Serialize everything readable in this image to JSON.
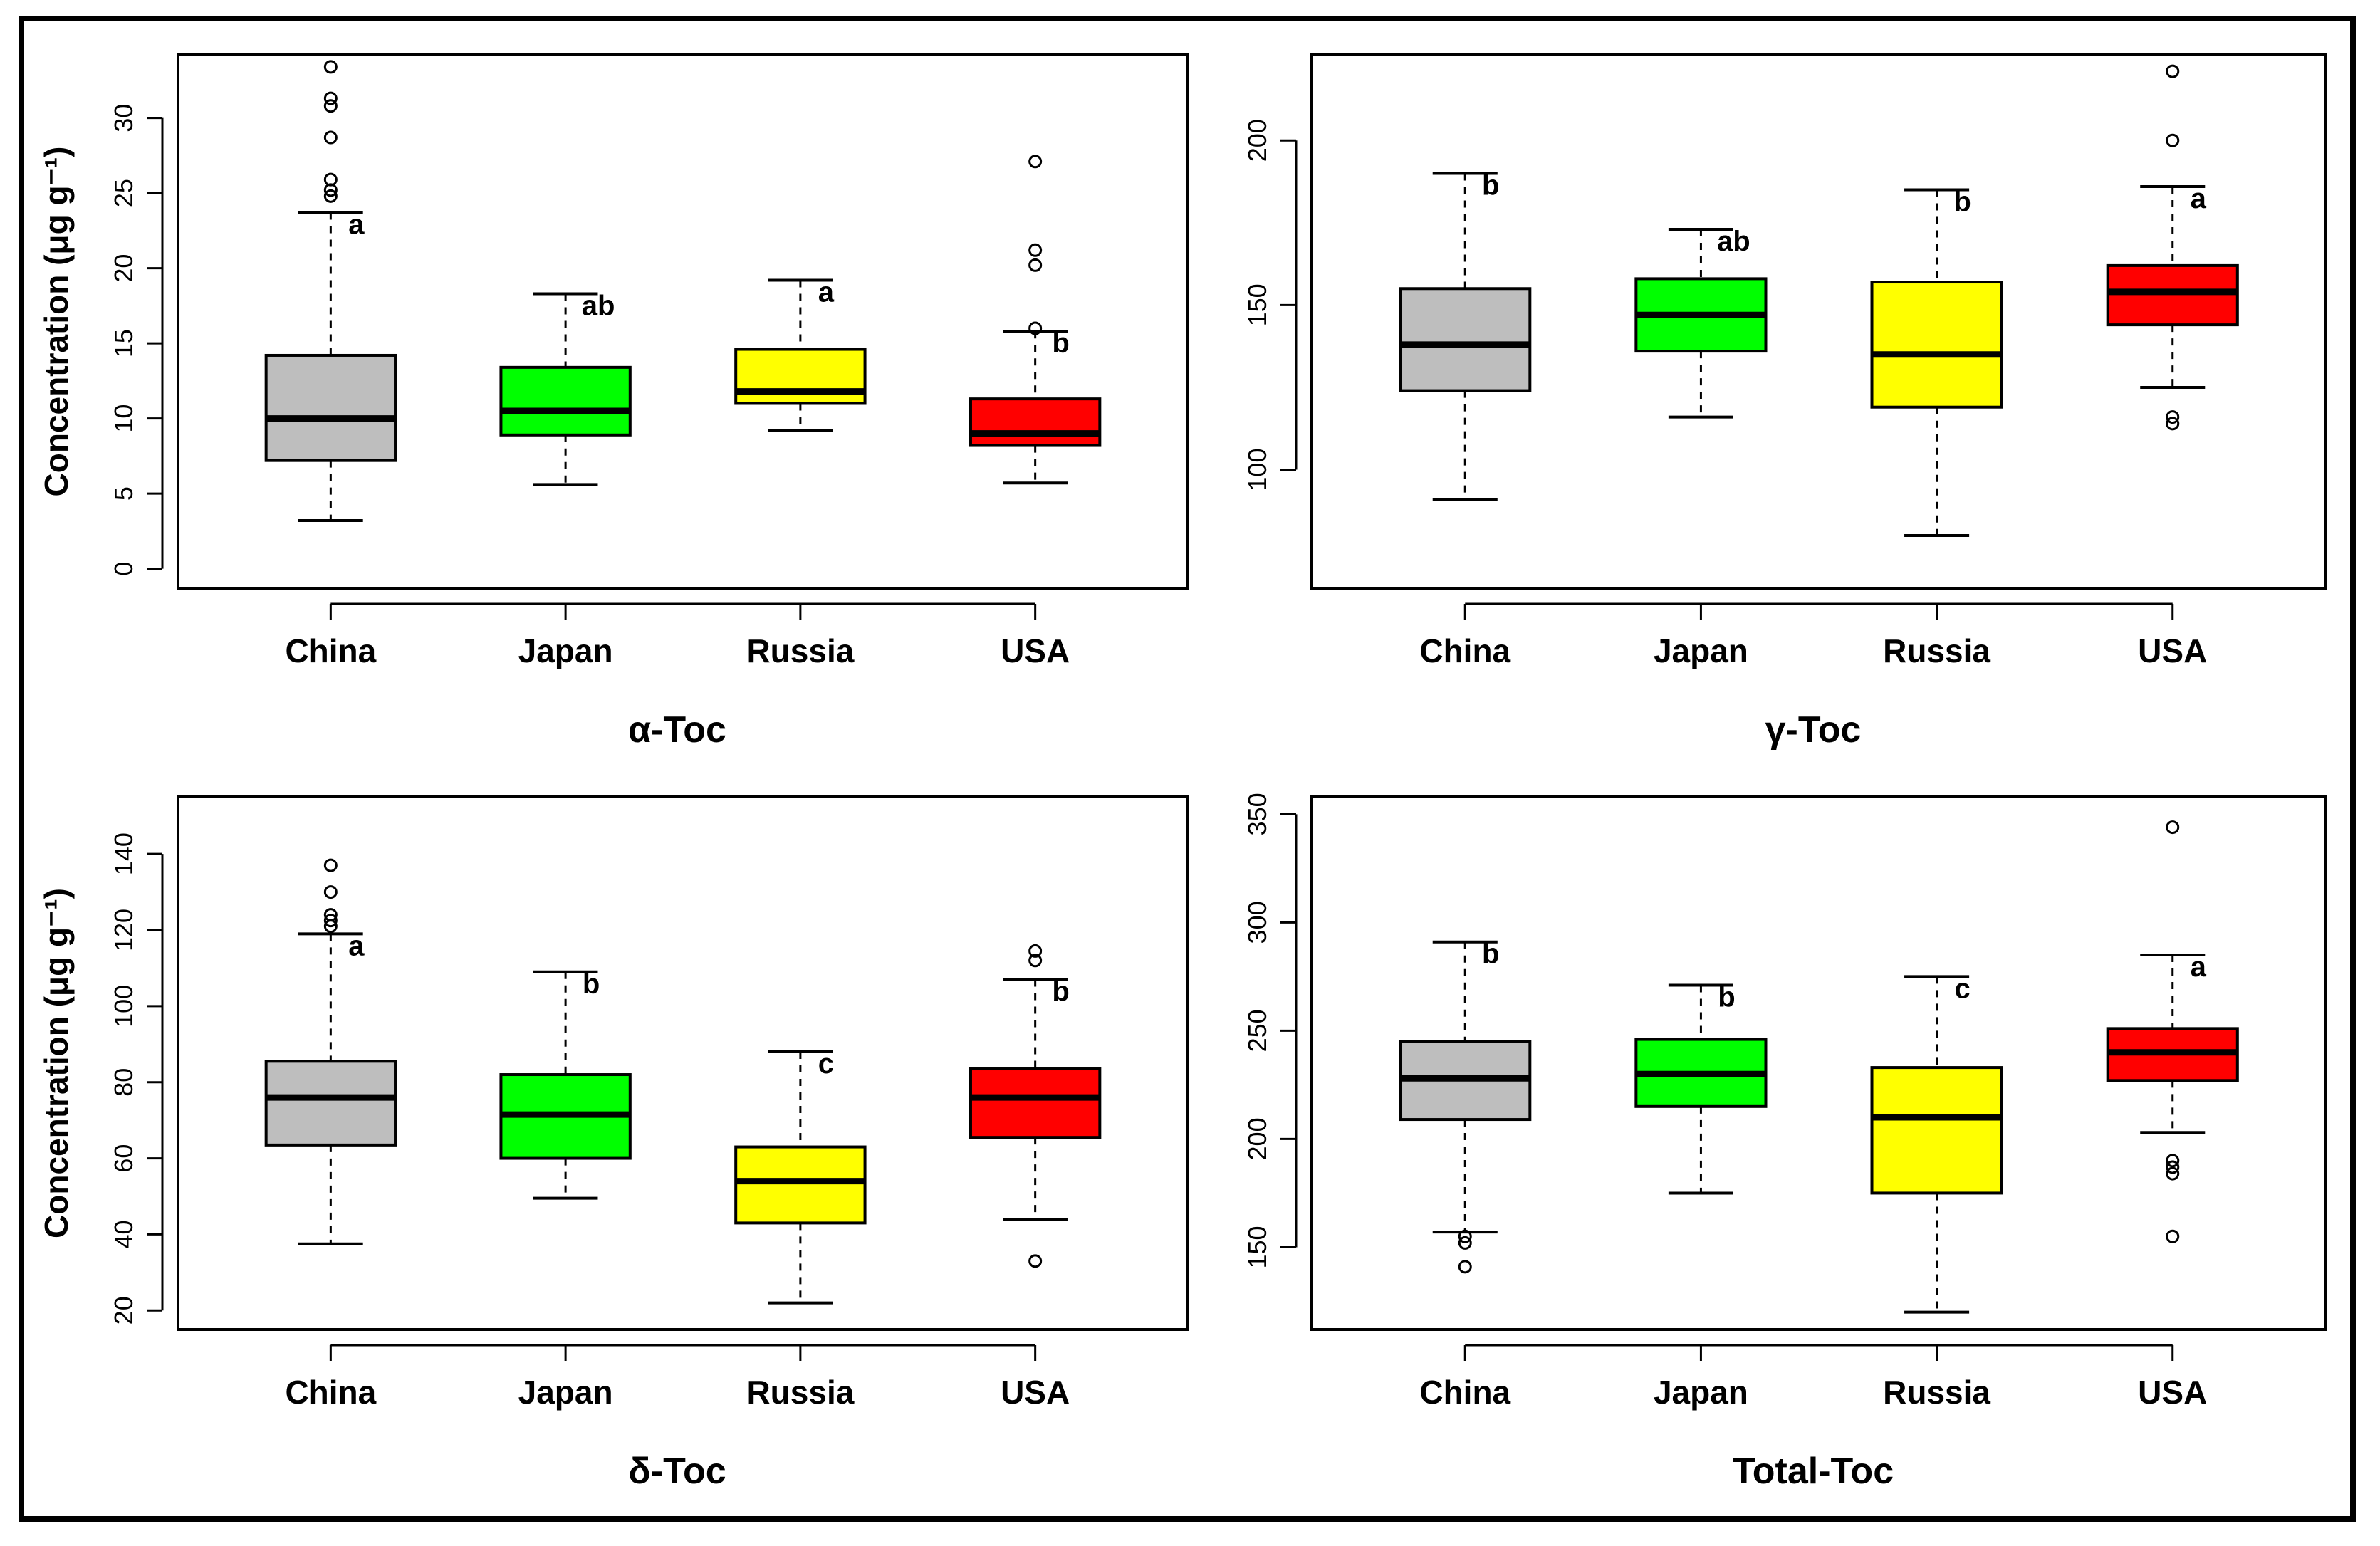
{
  "figure": {
    "y_axis_label": "Concentration (μg g⁻¹)",
    "colors": {
      "China": "#bebebe",
      "Japan": "#00ff00",
      "Russia": "#ffff00",
      "USA": "#ff0000"
    }
  },
  "chart_data": [
    {
      "type": "boxplot",
      "title": "α-Toc",
      "ylabel": "Concentration (μg g⁻¹)",
      "categories": [
        "China",
        "Japan",
        "Russia",
        "USA"
      ],
      "ylim": [
        -1.3,
        34.2
      ],
      "yticks": [
        0,
        5,
        10,
        15,
        20,
        25,
        30
      ],
      "boxes": [
        {
          "name": "China",
          "min": 3.2,
          "q1": 7.2,
          "median": 10.0,
          "q3": 14.2,
          "max": 23.7,
          "outliers": [
            24.8,
            25.2,
            25.9,
            28.7,
            30.8,
            31.3,
            33.4
          ],
          "letter": "a"
        },
        {
          "name": "Japan",
          "min": 5.6,
          "q1": 8.9,
          "median": 10.5,
          "q3": 13.4,
          "max": 18.3,
          "outliers": [],
          "letter": "ab"
        },
        {
          "name": "Russia",
          "min": 9.2,
          "q1": 11.0,
          "median": 11.8,
          "q3": 14.6,
          "max": 19.2,
          "outliers": [],
          "letter": "a"
        },
        {
          "name": "USA",
          "min": 5.7,
          "q1": 8.2,
          "median": 9.0,
          "q3": 11.3,
          "max": 15.8,
          "outliers": [
            16.0,
            20.2,
            21.2,
            27.1
          ],
          "letter": "b"
        }
      ]
    },
    {
      "type": "boxplot",
      "title": "γ-Toc",
      "ylabel": "",
      "categories": [
        "China",
        "Japan",
        "Russia",
        "USA"
      ],
      "ylim": [
        64,
        226
      ],
      "yticks": [
        100,
        150,
        200
      ],
      "boxes": [
        {
          "name": "China",
          "min": 91,
          "q1": 124,
          "median": 138,
          "q3": 155,
          "max": 190,
          "outliers": [],
          "letter": "b"
        },
        {
          "name": "Japan",
          "min": 116,
          "q1": 136,
          "median": 147,
          "q3": 158,
          "max": 173,
          "outliers": [],
          "letter": "ab"
        },
        {
          "name": "Russia",
          "min": 80,
          "q1": 119,
          "median": 135,
          "q3": 157,
          "max": 185,
          "outliers": [],
          "letter": "b"
        },
        {
          "name": "USA",
          "min": 125,
          "q1": 144,
          "median": 154,
          "q3": 162,
          "max": 186,
          "outliers": [
            114,
            116,
            200,
            221
          ],
          "letter": "a"
        }
      ]
    },
    {
      "type": "boxplot",
      "title": "δ-Toc",
      "ylabel": "Concentration (μg g⁻¹)",
      "categories": [
        "China",
        "Japan",
        "Russia",
        "USA"
      ],
      "ylim": [
        15,
        155
      ],
      "yticks": [
        20,
        40,
        60,
        80,
        100,
        120,
        140
      ],
      "boxes": [
        {
          "name": "China",
          "min": 37.5,
          "q1": 63.5,
          "median": 76,
          "q3": 85.5,
          "max": 119,
          "outliers": [
            121,
            122.5,
            124,
            130,
            137
          ],
          "letter": "a"
        },
        {
          "name": "Japan",
          "min": 49.5,
          "q1": 60,
          "median": 71.5,
          "q3": 82,
          "max": 109,
          "outliers": [],
          "letter": "b"
        },
        {
          "name": "Russia",
          "min": 22,
          "q1": 43,
          "median": 54,
          "q3": 63,
          "max": 88,
          "outliers": [],
          "letter": "c"
        },
        {
          "name": "USA",
          "min": 44,
          "q1": 65.5,
          "median": 76,
          "q3": 83.5,
          "max": 107,
          "outliers": [
            33,
            112,
            114.5
          ],
          "letter": "b"
        }
      ]
    },
    {
      "type": "boxplot",
      "title": "Total-Toc",
      "ylabel": "",
      "categories": [
        "China",
        "Japan",
        "Russia",
        "USA"
      ],
      "ylim": [
        112,
        358
      ],
      "yticks": [
        150,
        200,
        250,
        300,
        350
      ],
      "boxes": [
        {
          "name": "China",
          "min": 157,
          "q1": 209,
          "median": 228,
          "q3": 245,
          "max": 291,
          "outliers": [
            141,
            152,
            155
          ],
          "letter": "b"
        },
        {
          "name": "Japan",
          "min": 175,
          "q1": 215,
          "median": 230,
          "q3": 246,
          "max": 271,
          "outliers": [],
          "letter": "b"
        },
        {
          "name": "Russia",
          "min": 120,
          "q1": 175,
          "median": 210,
          "q3": 233,
          "max": 275,
          "outliers": [],
          "letter": "c"
        },
        {
          "name": "USA",
          "min": 203,
          "q1": 227,
          "median": 240,
          "q3": 251,
          "max": 285,
          "outliers": [
            155,
            184,
            187,
            190,
            344
          ],
          "letter": "a"
        }
      ]
    }
  ]
}
